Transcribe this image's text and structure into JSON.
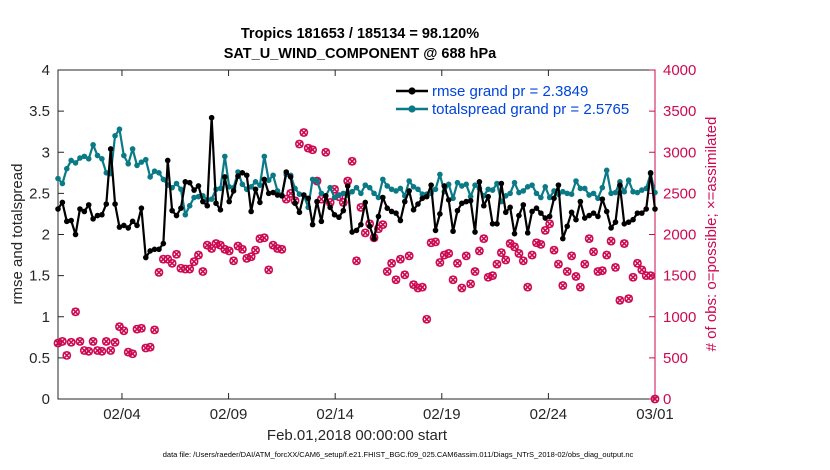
{
  "chart_data": {
    "type": "line",
    "title_line1": "Tropics 181653 / 185134 = 98.120%",
    "title_line2": "SAT_U_WIND_COMPONENT @ 688 hPa",
    "xlabel": "Feb.01,2018 00:00:00 start",
    "ylabel_left": "rmse and totalspread",
    "ylabel_right": "# of obs: o=possible; ×=assimilated",
    "footnote": "data file: /Users/raeder/DAI/ATM_forcXX/CAM6_setup/f.e21.FHIST_BGC.f09_025.CAM6assim.011/Diags_NTrS_2018-02/obs_diag_output.nc",
    "xlim": [
      1,
      29
    ],
    "ylim_left": [
      0,
      4
    ],
    "ylim_right": [
      0,
      4000
    ],
    "x_ticks": [
      {
        "value": 4,
        "label": "02/04"
      },
      {
        "value": 9,
        "label": "02/09"
      },
      {
        "value": 14,
        "label": "02/14"
      },
      {
        "value": 19,
        "label": "02/19"
      },
      {
        "value": 24,
        "label": "02/24"
      },
      {
        "value": 29,
        "label": "03/01"
      }
    ],
    "y_ticks_left": [
      0,
      0.5,
      1,
      1.5,
      2,
      2.5,
      3,
      3.5,
      4
    ],
    "y_tick_labels_left": [
      "0",
      "0.5",
      "1",
      "1.5",
      "2",
      "2.5",
      "3",
      "3.5",
      "4"
    ],
    "y_ticks_right": [
      0,
      500,
      1000,
      1500,
      2000,
      2500,
      3000,
      3500,
      4000
    ],
    "y_tick_labels_right": [
      "0",
      "500",
      "1000",
      "1500",
      "2000",
      "2500",
      "3000",
      "3500",
      "4000"
    ],
    "series": [
      {
        "name": "rmse grand pr = 2.3849",
        "axis": "left",
        "color": "#000000",
        "marker": "circle",
        "values": [
          2.31,
          2.39,
          2.16,
          2.17,
          2.0,
          2.31,
          2.28,
          2.36,
          2.19,
          2.23,
          2.24,
          2.37,
          3.04,
          2.37,
          2.09,
          2.11,
          2.08,
          2.16,
          2.11,
          2.32,
          1.72,
          1.8,
          1.82,
          1.82,
          1.89,
          2.9,
          2.29,
          2.23,
          2.32,
          2.64,
          2.63,
          2.54,
          2.59,
          2.4,
          2.35,
          3.42,
          2.38,
          2.3,
          2.7,
          2.4,
          2.53,
          2.71,
          2.75,
          2.72,
          2.28,
          2.55,
          2.39,
          2.67,
          2.5,
          2.51,
          2.48,
          2.47,
          2.76,
          2.7,
          2.38,
          2.27,
          2.48,
          2.44,
          2.12,
          2.4,
          2.16,
          2.47,
          2.33,
          2.24,
          2.21,
          2.29,
          2.59,
          2.03,
          2.05,
          2.12,
          2.39,
          2.1,
          1.95,
          2.22,
          2.45,
          2.32,
          2.28,
          2.26,
          2.17,
          2.4,
          2.53,
          2.3,
          2.37,
          2.44,
          2.46,
          2.6,
          2.05,
          2.25,
          2.59,
          2.42,
          2.04,
          2.29,
          2.38,
          2.4,
          2.41,
          2.03,
          2.64,
          2.35,
          2.46,
          2.13,
          2.13,
          2.62,
          2.27,
          2.33,
          2.01,
          2.23,
          2.36,
          2.02,
          2.28,
          2.32,
          2.26,
          2.2,
          2.22,
          2.44,
          2.6,
          1.95,
          2.1,
          2.27,
          2.18,
          2.4,
          2.2,
          2.23,
          2.26,
          2.22,
          2.43,
          2.28,
          2.08,
          2.15,
          2.6,
          2.13,
          2.15,
          2.18,
          2.26,
          2.26,
          2.31,
          2.75,
          2.31
        ]
      },
      {
        "name": "totalspread grand pr = 2.5765",
        "axis": "left",
        "color": "#0a7a86",
        "marker": "circle",
        "values": [
          2.68,
          2.62,
          2.8,
          2.9,
          2.87,
          2.93,
          2.95,
          2.92,
          3.09,
          2.96,
          2.92,
          2.75,
          2.74,
          3.2,
          3.28,
          2.96,
          2.86,
          3.04,
          2.84,
          2.88,
          2.91,
          2.7,
          2.77,
          2.75,
          2.67,
          2.6,
          2.57,
          2.62,
          2.55,
          2.24,
          2.35,
          2.45,
          2.46,
          2.47,
          2.42,
          2.43,
          2.55,
          2.56,
          2.95,
          2.58,
          2.57,
          2.76,
          2.61,
          2.55,
          2.58,
          2.64,
          2.6,
          2.95,
          2.66,
          2.72,
          2.53,
          2.48,
          2.73,
          2.72,
          2.56,
          2.49,
          2.48,
          2.33,
          2.67,
          2.65,
          2.5,
          2.47,
          2.57,
          2.45,
          2.48,
          2.5,
          2.48,
          2.52,
          2.57,
          2.5,
          2.6,
          2.57,
          2.5,
          2.45,
          2.67,
          2.59,
          2.55,
          2.53,
          2.56,
          2.47,
          2.65,
          2.58,
          2.55,
          2.49,
          2.49,
          2.5,
          2.55,
          2.73,
          2.52,
          2.61,
          2.44,
          2.63,
          2.59,
          2.61,
          2.46,
          2.6,
          2.56,
          2.47,
          2.55,
          2.54,
          2.62,
          2.4,
          2.47,
          2.5,
          2.63,
          2.51,
          2.53,
          2.58,
          2.6,
          2.5,
          2.45,
          2.58,
          2.45,
          2.53,
          2.49,
          2.52,
          2.5,
          2.49,
          2.65,
          2.56,
          2.56,
          2.48,
          2.5,
          2.44,
          2.57,
          2.78,
          2.5,
          2.51,
          2.64,
          2.52,
          2.66,
          2.52,
          2.51,
          2.54,
          2.56,
          2.74,
          2.51
        ]
      },
      {
        "name": "possible",
        "axis": "right",
        "color": "#cc0a52",
        "marker": "o",
        "values": [
          680,
          700,
          530,
          690,
          1060,
          700,
          590,
          580,
          700,
          590,
          580,
          700,
          590,
          690,
          880,
          830,
          570,
          550,
          850,
          860,
          620,
          630,
          840,
          1540,
          1700,
          1700,
          1650,
          1760,
          1590,
          1580,
          1580,
          1670,
          1750,
          1550,
          1870,
          1830,
          1890,
          1870,
          1820,
          1800,
          1680,
          1860,
          1820,
          1710,
          1730,
          1810,
          1950,
          1960,
          1570,
          1870,
          1830,
          1820,
          2430,
          2500,
          2410,
          3100,
          3240,
          3050,
          3030,
          2650,
          2430,
          3000,
          2390,
          2550,
          2460,
          2390,
          2650,
          2890,
          1680,
          2330,
          2020,
          2130,
          1960,
          2070,
          2120,
          1550,
          1650,
          1450,
          1700,
          1510,
          1740,
          1390,
          1350,
          1360,
          970,
          1900,
          1910,
          1660,
          1750,
          1770,
          1450,
          1650,
          1350,
          1740,
          1400,
          1550,
          1800,
          1950,
          1480,
          1500,
          1640,
          1780,
          1690,
          1890,
          1850,
          1770,
          1680,
          1360,
          1750,
          1900,
          1880,
          2050,
          2130,
          1810,
          1640,
          1380,
          1550,
          1740,
          1490,
          1360,
          1640,
          1950,
          1790,
          1550,
          1560,
          1750,
          1920,
          1600,
          1200,
          1890,
          1220,
          1480,
          1650,
          1570,
          1500,
          1500,
          0
        ]
      },
      {
        "name": "assimilated",
        "axis": "right",
        "color": "#cc0a52",
        "marker": "x",
        "values": [
          680,
          700,
          530,
          690,
          1060,
          700,
          590,
          580,
          700,
          590,
          580,
          700,
          590,
          690,
          880,
          830,
          570,
          550,
          850,
          860,
          620,
          630,
          840,
          1540,
          1700,
          1700,
          1650,
          1760,
          1590,
          1580,
          1580,
          1670,
          1750,
          1550,
          1870,
          1830,
          1890,
          1870,
          1820,
          1800,
          1680,
          1860,
          1820,
          1710,
          1730,
          1810,
          1950,
          1960,
          1570,
          1870,
          1830,
          1820,
          2430,
          2500,
          2410,
          3100,
          3240,
          3050,
          3030,
          2650,
          2430,
          3000,
          2390,
          2550,
          2460,
          2390,
          2650,
          2890,
          1680,
          2330,
          2020,
          2130,
          1960,
          2070,
          2120,
          1550,
          1650,
          1450,
          1700,
          1510,
          1740,
          1390,
          1350,
          1360,
          970,
          1900,
          1910,
          1660,
          1750,
          1770,
          1450,
          1650,
          1350,
          1740,
          1400,
          1550,
          1800,
          1950,
          1480,
          1500,
          1640,
          1780,
          1690,
          1890,
          1850,
          1770,
          1680,
          1360,
          1750,
          1900,
          1880,
          2050,
          2130,
          1810,
          1640,
          1380,
          1550,
          1740,
          1490,
          1360,
          1640,
          1950,
          1790,
          1550,
          1560,
          1750,
          1920,
          1600,
          1200,
          1890,
          1220,
          1480,
          1650,
          1570,
          1500,
          1500,
          0
        ]
      }
    ],
    "legend": {
      "location": "top-right",
      "entries": [
        "rmse grand pr = 2.3849",
        "totalspread grand pr = 2.5765"
      ]
    },
    "grid": false
  }
}
